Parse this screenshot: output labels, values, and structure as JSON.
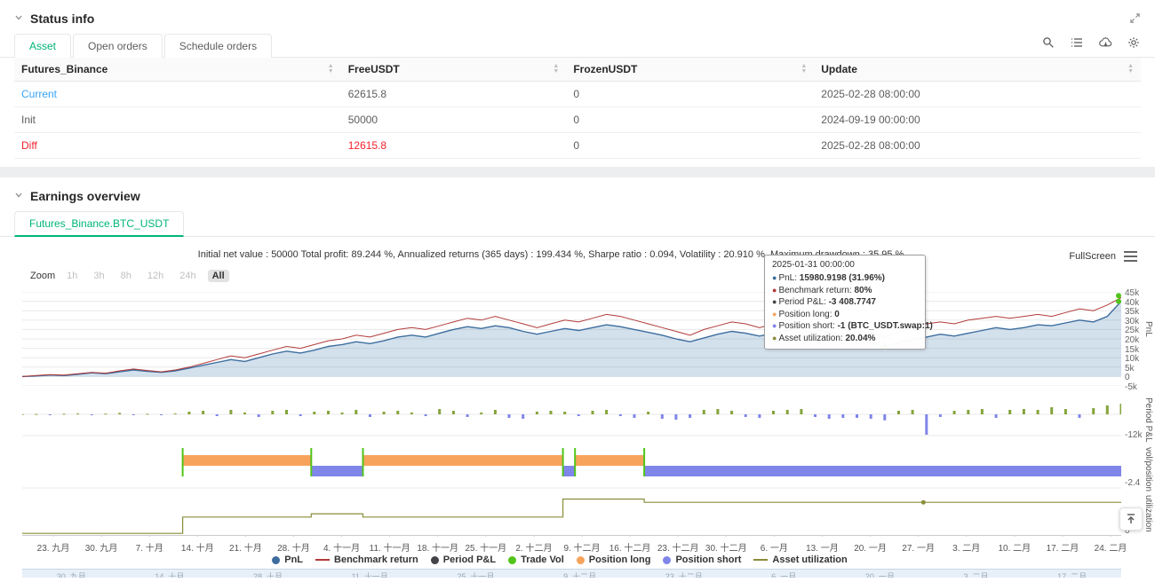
{
  "colors": {
    "accent": "#00b578",
    "link": "#36a3f7",
    "danger": "#f5222d",
    "pnl_line": "#3d6d9e",
    "pnl_fill": "rgba(98,146,189,0.28)",
    "benchmark": "#b23a3a",
    "period_positive": "#85a43b",
    "period_negative": "#8085e9",
    "trade_vol": "#52c41a",
    "position_long": "#f7a35c",
    "position_short": "#8085e9",
    "utilization": "#8a8d3a"
  },
  "status_info": {
    "title": "Status info",
    "tabs": [
      {
        "label": "Asset",
        "active": true
      },
      {
        "label": "Open orders",
        "active": false
      },
      {
        "label": "Schedule orders",
        "active": false
      }
    ],
    "toolbar_icons": [
      "search-icon",
      "list-icon",
      "cloud-sync-icon",
      "settings-gear-icon"
    ],
    "table": {
      "columns": [
        "Futures_Binance",
        "FreeUSDT",
        "FrozenUSDT",
        "Update"
      ],
      "rows": [
        {
          "name": "Current",
          "free": "62615.8",
          "frozen": "0",
          "update": "2025-02-28 08:00:00",
          "name_style": "link",
          "free_style": "default"
        },
        {
          "name": "Init",
          "free": "50000",
          "frozen": "0",
          "update": "2024-09-19 00:00:00",
          "name_style": "default",
          "free_style": "default"
        },
        {
          "name": "Diff",
          "free": "12615.8",
          "frozen": "0",
          "update": "2025-02-28 08:00:00",
          "name_style": "danger",
          "free_style": "danger"
        }
      ]
    }
  },
  "earnings": {
    "title": "Earnings overview",
    "tab": "Futures_Binance.BTC_USDT",
    "stats_line": "Initial net value : 50000 Total profit: 89.244 %, Annualized returns (365 days) : 199.434 %, Sharpe ratio : 0.094, Volatility : 20.910 %, Maximum drawdown : 35.95 %",
    "fullscreen_label": "FullScreen",
    "zoom": {
      "label": "Zoom",
      "options": [
        "1h",
        "3h",
        "8h",
        "12h",
        "24h",
        "All"
      ],
      "active": "All"
    },
    "y_axis_titles": [
      "PnL",
      "Period P&L",
      "vol/position",
      "utilization"
    ],
    "tooltip": {
      "header": "2025-01-31 00:00:00",
      "lines": [
        {
          "marker": "#3d6d9e",
          "label": "PnL",
          "value": "15980.9198 (31.96%)"
        },
        {
          "marker": "#b23a3a",
          "label": "Benchmark return",
          "value": "80%"
        },
        {
          "marker": "#434348",
          "label": "Period P&L",
          "value": "-3 408.7747"
        },
        {
          "marker": "#f7a35c",
          "label": "Position long",
          "value": "0"
        },
        {
          "marker": "#8085e9",
          "label": "Position short",
          "value": "-1 (BTC_USDT.swap:1)"
        },
        {
          "marker": "#8a8d3a",
          "label": "Asset utilization",
          "value": "20.04%"
        }
      ]
    },
    "legend": [
      {
        "label": "PnL",
        "color": "#3d6d9e",
        "shape": "circle"
      },
      {
        "label": "Benchmark return",
        "color": "#b23a3a",
        "shape": "line"
      },
      {
        "label": "Period P&L",
        "color": "#434348",
        "shape": "circle"
      },
      {
        "label": "Trade Vol",
        "color": "#52c41a",
        "shape": "circle"
      },
      {
        "label": "Position long",
        "color": "#f7a35c",
        "shape": "circle"
      },
      {
        "label": "Position short",
        "color": "#8085e9",
        "shape": "circle"
      },
      {
        "label": "Asset utilization",
        "color": "#8a8d3a",
        "shape": "line"
      }
    ],
    "navigator_labels": [
      "30. 九月",
      "14. 十月",
      "28. 十月",
      "11. 十一月",
      "25. 十一月",
      "9. 十二月",
      "23. 十二月",
      "6. 一月",
      "20. 一月",
      "3. 二月",
      "17. 二月"
    ]
  },
  "chart_data": {
    "type": "multi-panel-timeseries",
    "x_labels": [
      "23. 九月",
      "30. 九月",
      "7. 十月",
      "14. 十月",
      "21. 十月",
      "28. 十月",
      "4. 十一月",
      "11. 十一月",
      "18. 十一月",
      "25. 十一月",
      "2. 十二月",
      "9. 十二月",
      "16. 十二月",
      "23. 十二月",
      "30. 十二月",
      "6. 一月",
      "13. 一月",
      "20. 一月",
      "27. 一月",
      "3. 二月",
      "10. 二月",
      "17. 二月",
      "24. 二月"
    ],
    "panels": [
      {
        "name": "PnL",
        "type": "area+line",
        "y_ticks": [
          "45k",
          "40k",
          "35k",
          "30k",
          "25k",
          "20k",
          "15k",
          "10k",
          "5k",
          "0",
          "-5k"
        ],
        "y_range_k": [
          -5,
          45
        ],
        "series": [
          {
            "name": "PnL",
            "color": "#3d6d9e",
            "values_k": [
              0,
              0.3,
              0.8,
              0.5,
              1.2,
              2,
              1.5,
              2.5,
              3.5,
              2.8,
              2.2,
              3,
              4.5,
              6,
              7.5,
              9,
              8,
              10,
              12,
              13.5,
              12.5,
              14,
              16,
              17,
              18.5,
              17.5,
              19,
              21,
              22,
              21,
              23,
              25,
              26.5,
              25.5,
              27,
              26,
              24,
              22.5,
              24,
              25.5,
              24.5,
              26,
              27.5,
              26.5,
              25,
              23.5,
              22,
              20,
              18.5,
              20.5,
              22.5,
              24,
              23,
              21.5,
              23,
              24.5,
              26,
              25,
              23.5,
              22,
              19,
              17.5,
              16,
              18,
              19.5,
              21,
              22.5,
              21.5,
              23,
              24.5,
              26,
              25,
              26,
              27.5,
              27,
              28.5,
              30,
              29,
              32,
              40
            ]
          },
          {
            "name": "Benchmark return",
            "color": "#b23a3a",
            "values_k": [
              0,
              0.5,
              1,
              0.8,
              1.5,
              2.2,
              1.8,
              3,
              4,
              3.2,
              2.5,
              3.5,
              5,
              7,
              9,
              11,
              10,
              12,
              14,
              16,
              15,
              17,
              19,
              20,
              22,
              21,
              23,
              25,
              26,
              25,
              27,
              29,
              31,
              30,
              32,
              30,
              28,
              26,
              28,
              30,
              29,
              31,
              33,
              32,
              30,
              28,
              26,
              24,
              22,
              25,
              27,
              29,
              28,
              26,
              28,
              30,
              32,
              31,
              29,
              27,
              25,
              23,
              21,
              24,
              26,
              28,
              29,
              28,
              30,
              31,
              32,
              31,
              32,
              33,
              32,
              34,
              36,
              35,
              38,
              42
            ]
          }
        ],
        "highlight_point": {
          "index": 62,
          "date": "2025-01-31 00:00:00",
          "pnl": 15980.9198,
          "pnl_pct": "31.96%"
        }
      },
      {
        "name": "Period P&L",
        "type": "bar",
        "y_range_k": [
          -13,
          10
        ],
        "y_tick": "-12k",
        "values_k": [
          0.1,
          0.2,
          -0.1,
          0.3,
          0.5,
          -0.3,
          0.4,
          0.8,
          -0.5,
          0.3,
          -0.2,
          0.5,
          1.5,
          2,
          -1,
          2.5,
          1,
          -1.5,
          2,
          2.5,
          -1,
          1.5,
          2,
          1,
          2.5,
          -1.5,
          1.5,
          2,
          1,
          -1,
          3,
          2,
          -1.5,
          1,
          2.5,
          -2,
          -2.5,
          1.5,
          2,
          1.5,
          -1,
          2,
          2.5,
          -1,
          -2,
          1.5,
          -2.5,
          -3,
          -2,
          2.5,
          3,
          2,
          -1.5,
          -2,
          2,
          2.5,
          3,
          -1.5,
          -2.5,
          -2,
          -2,
          -2.5,
          -3.4,
          2,
          2.5,
          -11.5,
          -1.5,
          2,
          2.5,
          3,
          -2,
          2.5,
          3,
          2.5,
          4,
          3,
          -2,
          3.5,
          5,
          6
        ]
      },
      {
        "name": "vol/position",
        "type": "bands",
        "y_tick": "-2.4",
        "long_segments_pct": [
          [
            14.6,
            26.3
          ],
          [
            31,
            49.2
          ],
          [
            50.3,
            56.6
          ]
        ],
        "short_segments_pct": [
          [
            26.3,
            31
          ],
          [
            49.2,
            50.3
          ],
          [
            56.6,
            100
          ]
        ],
        "trade_marks_pct": [
          14.6,
          26.3,
          31,
          49.2,
          50.3,
          56.6
        ]
      },
      {
        "name": "Asset utilization",
        "type": "step",
        "y_tick": "0",
        "y_range_pct": [
          0,
          25
        ],
        "points_pct": [
          [
            0,
            1
          ],
          [
            14.6,
            1
          ],
          [
            14.6,
            11
          ],
          [
            26.3,
            11
          ],
          [
            26.3,
            13
          ],
          [
            31,
            13
          ],
          [
            31,
            11
          ],
          [
            49.2,
            11
          ],
          [
            49.2,
            22
          ],
          [
            56.6,
            22
          ],
          [
            56.6,
            20
          ],
          [
            100,
            20
          ]
        ],
        "marker_pct": [
          82,
          20
        ]
      }
    ]
  }
}
